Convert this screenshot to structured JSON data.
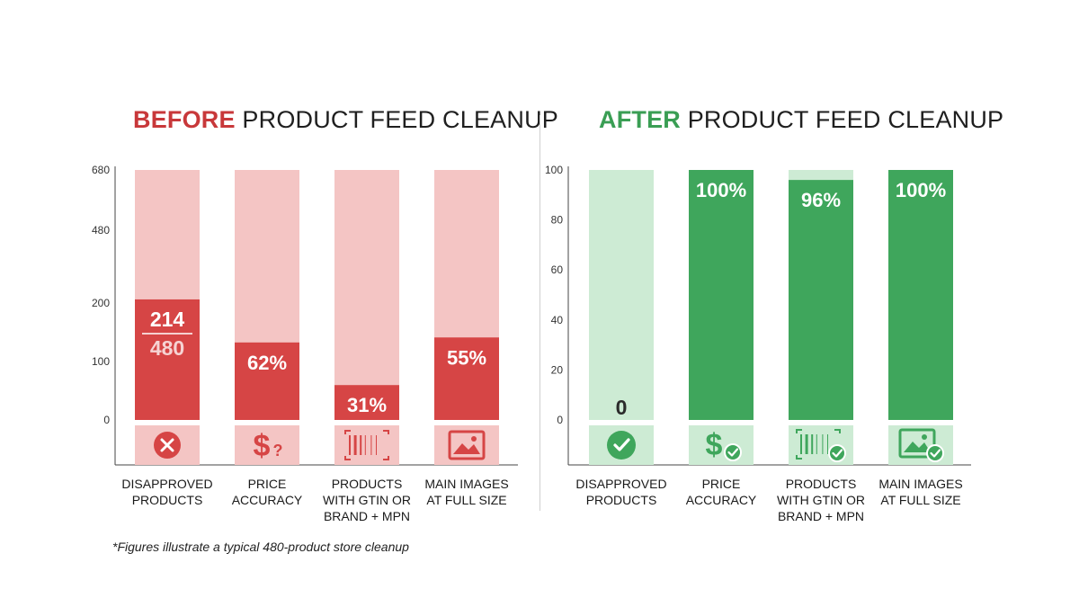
{
  "colors": {
    "before_bar": "#d64545",
    "before_track": "#f4c5c4",
    "before_accent": "#c8383a",
    "after_bar": "#3fa65c",
    "after_track": "#cdebd4",
    "after_accent": "#3a9e54",
    "axis": "#444444",
    "icon_bg_before": "#f4c5c4",
    "icon_bg_after": "#cdebd4"
  },
  "before": {
    "title_accent": "BEFORE",
    "title_rest": "PRODUCT FEED CLEANUP"
  },
  "after": {
    "title_accent": "AFTER",
    "title_rest": "PRODUCT FEED CLEANUP"
  },
  "footnote": "*Figures illustrate a typical 480-product store cleanup",
  "chart_data": [
    {
      "type": "bar",
      "title": "BEFORE PRODUCT FEED CLEANUP",
      "categories": [
        "DISAPPROVED\nPRODUCTS",
        "PRICE\nACCURACY",
        "PRODUCTS\nWITH GTIN OR\nBRAND + MPN",
        "MAIN IMAGES\nAT FULL SIZE"
      ],
      "values": [
        214,
        62,
        31,
        55
      ],
      "data_labels": [
        "214",
        "62%",
        "31%",
        "55%"
      ],
      "first_label_denominator": "480",
      "y_ticks": [
        "0",
        "100",
        "200",
        "480",
        "680"
      ],
      "icons": [
        "x-circle-icon",
        "dollar-question-icon",
        "barcode-icon",
        "image-icon"
      ],
      "grid": false,
      "legend": "none"
    },
    {
      "type": "bar",
      "title": "AFTER PRODUCT FEED CLEANUP",
      "categories": [
        "DISAPPROVED\nPRODUCTS",
        "PRICE\nACCURACY",
        "PRODUCTS\nWITH GTIN OR\nBRAND + MPN",
        "MAIN IMAGES\nAT FULL SIZE"
      ],
      "values": [
        0,
        100,
        96,
        100
      ],
      "data_labels": [
        "0",
        "100%",
        "96%",
        "100%"
      ],
      "y_ticks": [
        "0",
        "20",
        "40",
        "60",
        "80",
        "100"
      ],
      "ylim": [
        0,
        100
      ],
      "icons": [
        "check-circle-icon",
        "dollar-check-icon",
        "barcode-check-icon",
        "image-check-icon"
      ],
      "grid": false,
      "legend": "none"
    }
  ]
}
